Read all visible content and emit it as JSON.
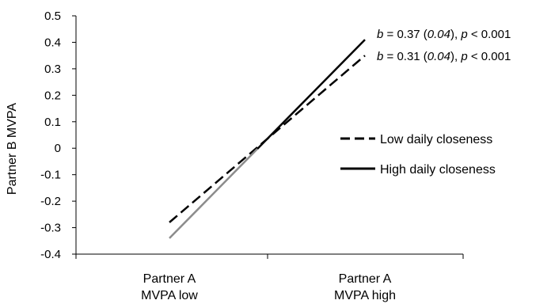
{
  "chart_data": {
    "type": "line",
    "categories": [
      "Partner A\nMVPA low",
      "Partner A\nMVPA high"
    ],
    "ylabel": "Partner B MVPA",
    "ylim": [
      -0.4,
      0.5
    ],
    "yticks": [
      -0.4,
      -0.3,
      -0.2,
      -0.1,
      0,
      0.1,
      0.2,
      0.3,
      0.4,
      0.5
    ],
    "ytick_labels": [
      "-0.4",
      "-0.3",
      "-0.2",
      "-0.1",
      "0",
      "0.1",
      "0.2",
      "0.3",
      "0.4",
      "0.5"
    ],
    "grid": false,
    "legend_position": "right",
    "series": [
      {
        "name": "Low daily closeness",
        "values": [
          -0.28,
          0.35
        ],
        "style": "dashed",
        "color": "#000000",
        "annotation": {
          "b": "b",
          "value": " = 0.37 (",
          "se": "0.04",
          "mid": "), ",
          "p": "p",
          "tail": " < 0.001"
        }
      },
      {
        "name": "High daily closeness",
        "values": [
          -0.34,
          0.41
        ],
        "style": "solid",
        "color": "#000000",
        "low_segment_color": "#8c8c8c",
        "annotation": {
          "b": "b",
          "value": " = 0.31 (",
          "se": "0.04",
          "mid": "), ",
          "p": "p",
          "tail": " < 0.001"
        }
      }
    ]
  }
}
